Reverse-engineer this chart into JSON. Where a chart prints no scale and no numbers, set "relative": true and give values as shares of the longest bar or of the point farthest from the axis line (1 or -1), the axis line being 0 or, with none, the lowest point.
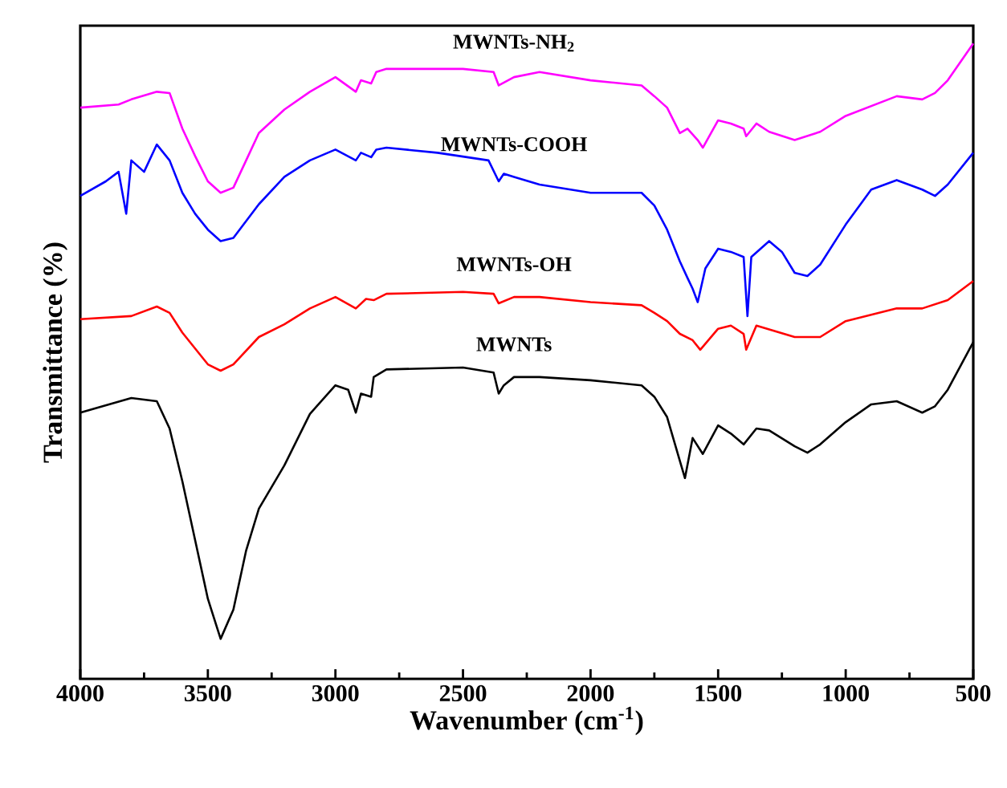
{
  "chart_data": {
    "type": "line",
    "relative": true,
    "xlabel": "Wavenumber (cm$^{-1}$)",
    "ylabel": "Transmittance (%)",
    "xlim": [
      4000,
      500
    ],
    "xticks": [
      4000,
      {
        "value": 3750,
        "label": null
      },
      3500,
      {
        "value": 3250,
        "label": null
      },
      3000,
      {
        "value": 2750,
        "label": null
      },
      2500,
      {
        "value": 2250,
        "label": null
      },
      2000,
      {
        "value": 1750,
        "label": null
      },
      1500,
      {
        "value": 1250,
        "label": null
      },
      1000,
      {
        "value": 750,
        "label": null
      },
      500
    ],
    "grid": false,
    "line_style": "solid",
    "marker": "none",
    "series": [
      {
        "name": "MWNTs-NH$_{2}$",
        "color": "#ff00ff",
        "x": [
          4000,
          3850,
          3800,
          3700,
          3650,
          3600,
          3550,
          3500,
          3450,
          3400,
          3350,
          3300,
          3200,
          3100,
          3000,
          2920,
          2900,
          2860,
          2840,
          2800,
          2500,
          2380,
          2360,
          2300,
          2200,
          2000,
          1800,
          1750,
          1700,
          1650,
          1620,
          1580,
          1560,
          1500,
          1450,
          1400,
          1390,
          1350,
          1300,
          1200,
          1100,
          1000,
          800,
          700,
          650,
          600,
          500
        ],
        "values": [
          0.899,
          0.904,
          0.912,
          0.924,
          0.922,
          0.866,
          0.823,
          0.783,
          0.765,
          0.773,
          0.816,
          0.859,
          0.896,
          0.924,
          0.947,
          0.924,
          0.942,
          0.937,
          0.955,
          0.96,
          0.96,
          0.955,
          0.934,
          0.947,
          0.955,
          0.942,
          0.934,
          0.917,
          0.899,
          0.859,
          0.866,
          0.848,
          0.836,
          0.879,
          0.874,
          0.866,
          0.854,
          0.874,
          0.861,
          0.848,
          0.861,
          0.886,
          0.917,
          0.912,
          0.922,
          0.942,
          1
        ]
      },
      {
        "name": "MWNTs-COOH",
        "color": "#0000ff",
        "x": [
          4000,
          3900,
          3850,
          3820,
          3800,
          3750,
          3700,
          3650,
          3600,
          3550,
          3500,
          3450,
          3400,
          3300,
          3200,
          3100,
          3000,
          2920,
          2900,
          2860,
          2840,
          2800,
          2600,
          2400,
          2360,
          2340,
          2300,
          2200,
          2000,
          1800,
          1750,
          1700,
          1650,
          1620,
          1600,
          1580,
          1550,
          1500,
          1450,
          1400,
          1385,
          1370,
          1300,
          1250,
          1200,
          1150,
          1100,
          1000,
          900,
          800,
          700,
          650,
          600,
          500
        ],
        "values": [
          0.76,
          0.783,
          0.798,
          0.732,
          0.816,
          0.798,
          0.841,
          0.816,
          0.765,
          0.732,
          0.707,
          0.689,
          0.694,
          0.747,
          0.79,
          0.816,
          0.833,
          0.816,
          0.828,
          0.821,
          0.833,
          0.836,
          0.828,
          0.816,
          0.783,
          0.795,
          0.79,
          0.778,
          0.765,
          0.765,
          0.745,
          0.707,
          0.657,
          0.631,
          0.614,
          0.593,
          0.646,
          0.677,
          0.672,
          0.664,
          0.571,
          0.664,
          0.689,
          0.672,
          0.639,
          0.634,
          0.652,
          0.715,
          0.77,
          0.785,
          0.77,
          0.76,
          0.778,
          0.828
        ]
      },
      {
        "name": "MWNTs-OH",
        "color": "#ff0000",
        "x": [
          4000,
          3800,
          3700,
          3650,
          3600,
          3500,
          3450,
          3400,
          3300,
          3200,
          3100,
          3000,
          2920,
          2880,
          2850,
          2800,
          2500,
          2380,
          2360,
          2300,
          2200,
          2000,
          1800,
          1750,
          1700,
          1650,
          1600,
          1570,
          1500,
          1450,
          1400,
          1390,
          1350,
          1200,
          1100,
          1000,
          800,
          700,
          600,
          500
        ],
        "values": [
          0.566,
          0.571,
          0.586,
          0.576,
          0.545,
          0.495,
          0.485,
          0.495,
          0.538,
          0.558,
          0.583,
          0.601,
          0.583,
          0.598,
          0.596,
          0.606,
          0.609,
          0.606,
          0.591,
          0.601,
          0.601,
          0.593,
          0.588,
          0.576,
          0.563,
          0.543,
          0.533,
          0.518,
          0.551,
          0.556,
          0.543,
          0.518,
          0.556,
          0.538,
          0.538,
          0.563,
          0.583,
          0.583,
          0.596,
          0.626
        ]
      },
      {
        "name": "MWNTs",
        "color": "#000000",
        "x": [
          4000,
          3800,
          3700,
          3650,
          3600,
          3500,
          3450,
          3400,
          3350,
          3300,
          3200,
          3100,
          3000,
          2950,
          2920,
          2900,
          2860,
          2850,
          2800,
          2500,
          2380,
          2360,
          2340,
          2300,
          2200,
          2000,
          1800,
          1750,
          1700,
          1650,
          1630,
          1600,
          1560,
          1500,
          1450,
          1400,
          1350,
          1300,
          1200,
          1150,
          1100,
          1000,
          900,
          800,
          700,
          650,
          600,
          500
        ],
        "values": [
          0.419,
          0.442,
          0.437,
          0.394,
          0.311,
          0.126,
          0.063,
          0.109,
          0.202,
          0.268,
          0.336,
          0.417,
          0.462,
          0.455,
          0.419,
          0.449,
          0.444,
          0.475,
          0.487,
          0.49,
          0.482,
          0.449,
          0.462,
          0.475,
          0.475,
          0.47,
          0.462,
          0.444,
          0.412,
          0.343,
          0.316,
          0.379,
          0.354,
          0.399,
          0.386,
          0.369,
          0.394,
          0.391,
          0.366,
          0.356,
          0.369,
          0.404,
          0.432,
          0.437,
          0.419,
          0.429,
          0.455,
          0.53
        ]
      }
    ]
  }
}
